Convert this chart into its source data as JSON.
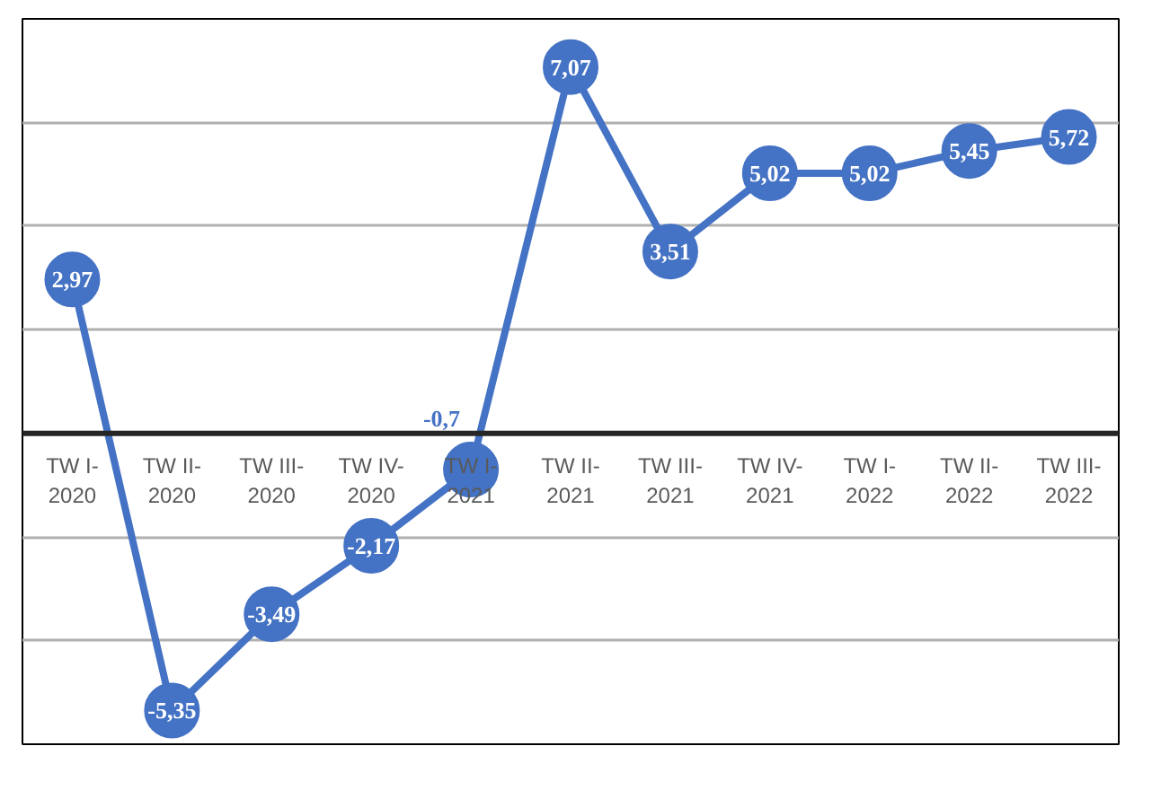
{
  "chart_data": {
    "type": "line",
    "categories": [
      "TW I-2020",
      "TW II-2020",
      "TW III-2020",
      "TW IV-2020",
      "TW I-2021",
      "TW II-2021",
      "TW III-2021",
      "TW IV-2021",
      "TW I-2022",
      "TW II-2022",
      "TW III-2022"
    ],
    "series": [
      {
        "color": "#4472c4",
        "values": [
          2.97,
          -5.35,
          -3.49,
          -2.17,
          -0.7,
          7.07,
          3.51,
          5.02,
          5.02,
          5.45,
          5.72
        ],
        "value_labels": [
          "2,97",
          "-5,35",
          "-3,49",
          "-2,17",
          "-0,7",
          "7,07",
          "3,51",
          "5,02",
          "5,02",
          "5,45",
          "5,72"
        ]
      }
    ],
    "ylim": [
      -6,
      8
    ],
    "yticks": [
      {
        "value": -6,
        "label": null
      },
      {
        "value": -4,
        "label": null
      },
      {
        "value": -2,
        "label": null
      },
      {
        "value": 0,
        "label": null
      },
      {
        "value": 2,
        "label": null
      },
      {
        "value": 4,
        "label": null
      },
      {
        "value": 6,
        "label": null
      },
      {
        "value": 8,
        "label": null
      }
    ],
    "grid": "y",
    "marker": "circle",
    "line_style": "solid",
    "tick_labels": "x"
  }
}
